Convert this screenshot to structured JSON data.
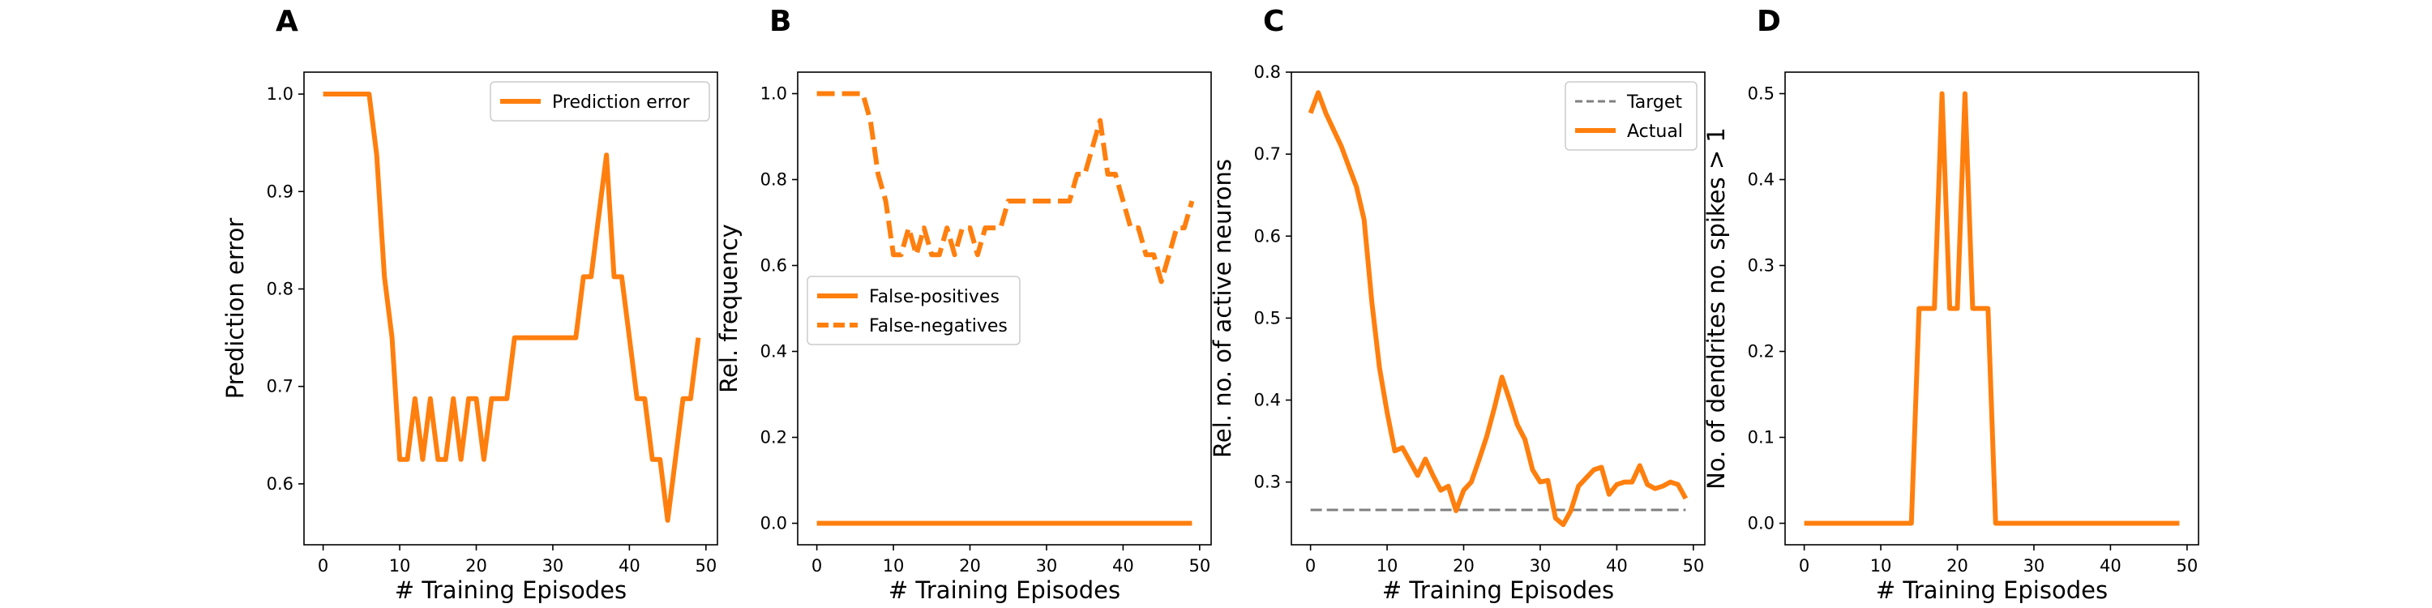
{
  "colors": {
    "series": "#ff7f0e",
    "target": "#808080",
    "axis": "#000000"
  },
  "chart_data": [
    {
      "panel": "A",
      "type": "line",
      "xlabel": "# Training Episodes",
      "ylabel": "Prediction error",
      "xlim": [
        -2.5,
        51.5
      ],
      "ylim": [
        0.5375,
        1.0225
      ],
      "xticks": [
        0,
        10,
        20,
        30,
        40,
        50
      ],
      "xtick_labels": [
        "0",
        "10",
        "20",
        "30",
        "40",
        "50"
      ],
      "yticks": [
        0.6,
        0.7,
        0.8,
        0.9,
        1.0
      ],
      "ytick_labels": [
        "0.6",
        "0.7",
        "0.8",
        "0.9",
        "1.0"
      ],
      "grid": false,
      "legend": "upper right",
      "series": [
        {
          "name": "Prediction error",
          "style": "solid",
          "x": [
            0,
            1,
            2,
            3,
            4,
            5,
            6,
            7,
            8,
            9,
            10,
            11,
            12,
            13,
            14,
            15,
            16,
            17,
            18,
            19,
            20,
            21,
            22,
            23,
            24,
            25,
            26,
            27,
            28,
            29,
            30,
            31,
            32,
            33,
            34,
            35,
            36,
            37,
            38,
            39,
            40,
            41,
            42,
            43,
            44,
            45,
            46,
            47,
            48,
            49
          ],
          "y": [
            1.0,
            1.0,
            1.0,
            1.0,
            1.0,
            1.0,
            1.0,
            0.9375,
            0.8125,
            0.75,
            0.625,
            0.625,
            0.6875,
            0.625,
            0.6875,
            0.625,
            0.625,
            0.6875,
            0.625,
            0.6875,
            0.6875,
            0.625,
            0.6875,
            0.6875,
            0.6875,
            0.75,
            0.75,
            0.75,
            0.75,
            0.75,
            0.75,
            0.75,
            0.75,
            0.75,
            0.8125,
            0.8125,
            0.875,
            0.9375,
            0.8125,
            0.8125,
            0.75,
            0.6875,
            0.6875,
            0.625,
            0.625,
            0.5625,
            0.625,
            0.6875,
            0.6875,
            0.75
          ]
        }
      ]
    },
    {
      "panel": "B",
      "type": "line",
      "xlabel": "# Training Episodes",
      "ylabel": "Rel. frequency",
      "xlim": [
        -2.5,
        51.5
      ],
      "ylim": [
        -0.05,
        1.05
      ],
      "xticks": [
        0,
        10,
        20,
        30,
        40,
        50
      ],
      "xtick_labels": [
        "0",
        "10",
        "20",
        "30",
        "40",
        "50"
      ],
      "yticks": [
        0.0,
        0.2,
        0.4,
        0.6,
        0.8,
        1.0
      ],
      "ytick_labels": [
        "0.0",
        "0.2",
        "0.4",
        "0.6",
        "0.8",
        "1.0"
      ],
      "grid": false,
      "legend": "center left",
      "series": [
        {
          "name": "False-positives",
          "style": "solid",
          "x": [
            0,
            49
          ],
          "y": [
            0.0,
            0.0
          ]
        },
        {
          "name": "False-negatives",
          "style": "dashed",
          "x": [
            0,
            1,
            2,
            3,
            4,
            5,
            6,
            7,
            8,
            9,
            10,
            11,
            12,
            13,
            14,
            15,
            16,
            17,
            18,
            19,
            20,
            21,
            22,
            23,
            24,
            25,
            26,
            27,
            28,
            29,
            30,
            31,
            32,
            33,
            34,
            35,
            36,
            37,
            38,
            39,
            40,
            41,
            42,
            43,
            44,
            45,
            46,
            47,
            48,
            49
          ],
          "y": [
            1.0,
            1.0,
            1.0,
            1.0,
            1.0,
            1.0,
            1.0,
            0.9375,
            0.8125,
            0.75,
            0.625,
            0.625,
            0.6875,
            0.625,
            0.6875,
            0.625,
            0.625,
            0.6875,
            0.625,
            0.6875,
            0.6875,
            0.625,
            0.6875,
            0.6875,
            0.6875,
            0.75,
            0.75,
            0.75,
            0.75,
            0.75,
            0.75,
            0.75,
            0.75,
            0.75,
            0.8125,
            0.8125,
            0.875,
            0.9375,
            0.8125,
            0.8125,
            0.75,
            0.6875,
            0.6875,
            0.625,
            0.625,
            0.5625,
            0.625,
            0.6875,
            0.6875,
            0.75
          ]
        }
      ]
    },
    {
      "panel": "C",
      "type": "line",
      "xlabel": "# Training Episodes",
      "ylabel": "Rel. no. of active neurons",
      "xlim": [
        -2.5,
        51.5
      ],
      "ylim": [
        0.2235,
        0.8
      ],
      "xticks": [
        0,
        10,
        20,
        30,
        40,
        50
      ],
      "xtick_labels": [
        "0",
        "10",
        "20",
        "30",
        "40",
        "50"
      ],
      "yticks": [
        0.3,
        0.4,
        0.5,
        0.6,
        0.7,
        0.8
      ],
      "ytick_labels": [
        "0.3",
        "0.4",
        "0.5",
        "0.6",
        "0.7",
        "0.8"
      ],
      "grid": false,
      "legend": "upper right",
      "series": [
        {
          "name": "Target",
          "style": "dashed-thin",
          "x": [
            0,
            49
          ],
          "y": [
            0.266,
            0.266
          ]
        },
        {
          "name": "Actual",
          "style": "solid",
          "x": [
            0,
            1,
            2,
            3,
            4,
            5,
            6,
            7,
            8,
            9,
            10,
            11,
            12,
            13,
            14,
            15,
            16,
            17,
            18,
            19,
            20,
            21,
            22,
            23,
            24,
            25,
            26,
            27,
            28,
            29,
            30,
            31,
            32,
            33,
            34,
            35,
            36,
            37,
            38,
            39,
            40,
            41,
            42,
            43,
            44,
            45,
            46,
            47,
            48,
            49
          ],
          "y": [
            0.75,
            0.775,
            0.75,
            0.73,
            0.71,
            0.685,
            0.66,
            0.62,
            0.52,
            0.44,
            0.385,
            0.338,
            0.342,
            0.325,
            0.308,
            0.328,
            0.308,
            0.29,
            0.295,
            0.265,
            0.29,
            0.3,
            0.327,
            0.355,
            0.39,
            0.428,
            0.4,
            0.37,
            0.352,
            0.315,
            0.3,
            0.302,
            0.256,
            0.248,
            0.265,
            0.295,
            0.305,
            0.315,
            0.318,
            0.285,
            0.297,
            0.3,
            0.3,
            0.32,
            0.297,
            0.292,
            0.295,
            0.3,
            0.297,
            0.28
          ]
        }
      ]
    },
    {
      "panel": "D",
      "type": "line",
      "xlabel": "# Training Episodes",
      "ylabel": "No. of dendrites no. spikes > 1",
      "xlim": [
        -2.5,
        51.5
      ],
      "ylim": [
        -0.025,
        0.525
      ],
      "xticks": [
        0,
        10,
        20,
        30,
        40,
        50
      ],
      "xtick_labels": [
        "0",
        "10",
        "20",
        "30",
        "40",
        "50"
      ],
      "yticks": [
        0.0,
        0.1,
        0.2,
        0.3,
        0.4,
        0.5
      ],
      "ytick_labels": [
        "0.0",
        "0.1",
        "0.2",
        "0.3",
        "0.4",
        "0.5"
      ],
      "grid": false,
      "legend": "none",
      "series": [
        {
          "style": "solid",
          "x": [
            0,
            1,
            2,
            3,
            4,
            5,
            6,
            7,
            8,
            9,
            10,
            11,
            12,
            13,
            14,
            15,
            16,
            17,
            18,
            19,
            20,
            21,
            22,
            23,
            24,
            25,
            26,
            27,
            28,
            29,
            30,
            31,
            32,
            33,
            34,
            35,
            36,
            37,
            38,
            39,
            40,
            41,
            42,
            43,
            44,
            45,
            46,
            47,
            48,
            49
          ],
          "y": [
            0,
            0,
            0,
            0,
            0,
            0,
            0,
            0,
            0,
            0,
            0,
            0,
            0,
            0,
            0,
            0.25,
            0.25,
            0.25,
            0.5,
            0.25,
            0.25,
            0.5,
            0.25,
            0.25,
            0.25,
            0,
            0,
            0,
            0,
            0,
            0,
            0,
            0,
            0,
            0,
            0,
            0,
            0,
            0,
            0,
            0,
            0,
            0,
            0,
            0,
            0,
            0,
            0,
            0,
            0
          ]
        }
      ]
    }
  ]
}
